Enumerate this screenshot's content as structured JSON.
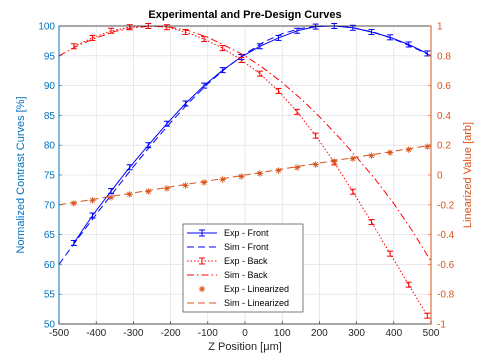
{
  "chart_data": {
    "type": "line",
    "title": "Experimental and Pre-Design Curves",
    "xlabel": "Z Position [μm]",
    "ylabel_left": "Normalized Contrast Curves [%]",
    "ylabel_right": "Linearized Value [arb]",
    "xlim": [
      -500,
      500
    ],
    "ylim_left": [
      50,
      100
    ],
    "ylim_right": [
      -1,
      1
    ],
    "x_ticks": [
      "-500",
      "-400",
      "-300",
      "-200",
      "-100",
      "0",
      "100",
      "200",
      "300",
      "400",
      "500"
    ],
    "y_left_ticks": [
      "50",
      "55",
      "60",
      "65",
      "70",
      "75",
      "80",
      "85",
      "90",
      "95",
      "100"
    ],
    "y_right_ticks": [
      "-1",
      "-0.8",
      "-0.6",
      "-0.4",
      "-0.2",
      "0",
      "0.2",
      "0.4",
      "0.6",
      "0.8",
      "1"
    ],
    "grid": true,
    "legend_position": "bottom-center",
    "colors": {
      "front": "#0000ff",
      "back": "#ff0000",
      "linearized": "#d95319",
      "left_axis": "#0072bd",
      "right_axis": "#d95319"
    },
    "series": [
      {
        "name": "Exp - Front",
        "axis": "left",
        "style": "errorbar",
        "x": [
          -460,
          -410,
          -360,
          -310,
          -260,
          -210,
          -160,
          -110,
          -60,
          -10,
          40,
          90,
          140,
          190,
          240,
          290,
          340,
          390,
          440,
          490
        ],
        "y": [
          63.6,
          68.2,
          72.3,
          76.3,
          80.0,
          83.6,
          87.0,
          90.0,
          92.6,
          94.8,
          96.6,
          98.0,
          99.2,
          99.9,
          100.0,
          99.7,
          99.0,
          98.1,
          96.9,
          95.4
        ]
      },
      {
        "name": "Sim - Front",
        "axis": "left",
        "style": "dashed",
        "x": [
          -500,
          -450,
          -400,
          -350,
          -300,
          -250,
          -200,
          -150,
          -100,
          -50,
          0,
          50,
          100,
          150,
          200,
          250,
          300,
          350,
          400,
          450,
          500
        ],
        "y": [
          60.0,
          64.3,
          68.4,
          72.4,
          76.4,
          80.2,
          83.8,
          87.2,
          90.3,
          93.0,
          95.3,
          97.3,
          98.7,
          99.6,
          100.0,
          100.0,
          99.6,
          98.9,
          97.8,
          96.5,
          95.0
        ]
      },
      {
        "name": "Exp - Back",
        "axis": "left",
        "style": "errorbar-dotted",
        "x": [
          -460,
          -410,
          -360,
          -310,
          -260,
          -210,
          -160,
          -110,
          -60,
          -10,
          40,
          90,
          140,
          190,
          240,
          290,
          340,
          390,
          440,
          490
        ],
        "y": [
          96.6,
          98.0,
          99.2,
          99.8,
          100.0,
          99.8,
          99.0,
          97.8,
          96.3,
          94.3,
          92.0,
          89.1,
          85.6,
          81.6,
          77.1,
          72.2,
          67.1,
          61.8,
          56.6,
          51.4
        ]
      },
      {
        "name": "Sim - Back",
        "axis": "left",
        "style": "dashdot",
        "x": [
          -500,
          -450,
          -400,
          -350,
          -300,
          -250,
          -200,
          -150,
          -100,
          -50,
          0,
          50,
          100,
          150,
          200,
          250,
          300,
          350,
          400,
          450,
          500
        ],
        "y": [
          95.0,
          96.7,
          98.0,
          99.1,
          99.7,
          100.0,
          99.8,
          99.2,
          98.1,
          96.6,
          95.0,
          92.9,
          90.5,
          87.8,
          84.8,
          81.5,
          78.0,
          74.3,
          70.2,
          65.6,
          60.5
        ]
      },
      {
        "name": "Exp - Linearized",
        "axis": "right",
        "style": "markers",
        "x": [
          -460,
          -410,
          -360,
          -310,
          -260,
          -210,
          -160,
          -110,
          -60,
          -10,
          40,
          90,
          140,
          190,
          240,
          290,
          340,
          390,
          440,
          490
        ],
        "y": [
          -0.19,
          -0.17,
          -0.15,
          -0.13,
          -0.11,
          -0.09,
          -0.07,
          -0.05,
          -0.03,
          -0.01,
          0.01,
          0.03,
          0.05,
          0.07,
          0.09,
          0.11,
          0.13,
          0.15,
          0.17,
          0.19
        ]
      },
      {
        "name": "Sim - Linearized",
        "axis": "right",
        "style": "dashed",
        "x": [
          -500,
          500
        ],
        "y": [
          -0.2,
          0.2
        ]
      }
    ]
  }
}
